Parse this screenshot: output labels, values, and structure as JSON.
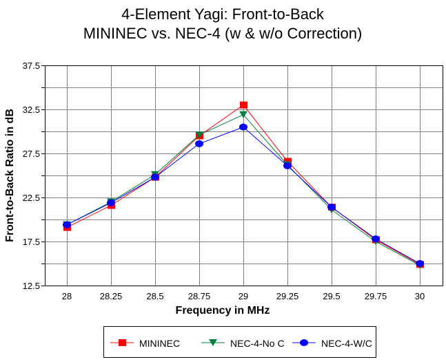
{
  "chart_data": {
    "type": "line",
    "title": [
      "4-Element Yagi:  Front-to-Back",
      "MININEC vs. NEC-4 (w & w/o Correction)"
    ],
    "xlabel": "Frequency in MHz",
    "ylabel": "Front-to-Back Ratio in dB",
    "x": [
      28,
      28.25,
      28.5,
      28.75,
      29,
      29.25,
      29.5,
      29.75,
      30
    ],
    "x_tick_labels": [
      "28",
      "28.25",
      "28.5",
      "28.75",
      "29",
      "29.25",
      "29.5",
      "29.75",
      "30"
    ],
    "ylim": [
      12.5,
      37.5
    ],
    "y_ticks": [
      12.5,
      17.5,
      22.5,
      27.5,
      32.5,
      37.5
    ],
    "y_tick_labels": [
      "12.5",
      "17.5",
      "22.5",
      "27.5",
      "32.5",
      "37.5"
    ],
    "y_grid_step": 2.5,
    "grid": true,
    "legend_position": "bottom",
    "series": [
      {
        "name": "MININEC",
        "color": "#ff0000",
        "marker": "square",
        "values": [
          19.1,
          21.6,
          24.8,
          29.5,
          33.0,
          26.6,
          21.4,
          17.7,
          14.9
        ]
      },
      {
        "name": "NEC-4-No C",
        "color": "#008040",
        "marker": "triangle-down",
        "values": [
          19.4,
          22.0,
          25.1,
          29.6,
          31.9,
          26.2,
          21.1,
          17.5,
          14.8
        ]
      },
      {
        "name": "NEC-4-W/C",
        "color": "#0000ff",
        "marker": "circle",
        "values": [
          19.4,
          21.9,
          24.8,
          28.6,
          30.5,
          26.1,
          21.4,
          17.8,
          15.0
        ]
      }
    ]
  }
}
